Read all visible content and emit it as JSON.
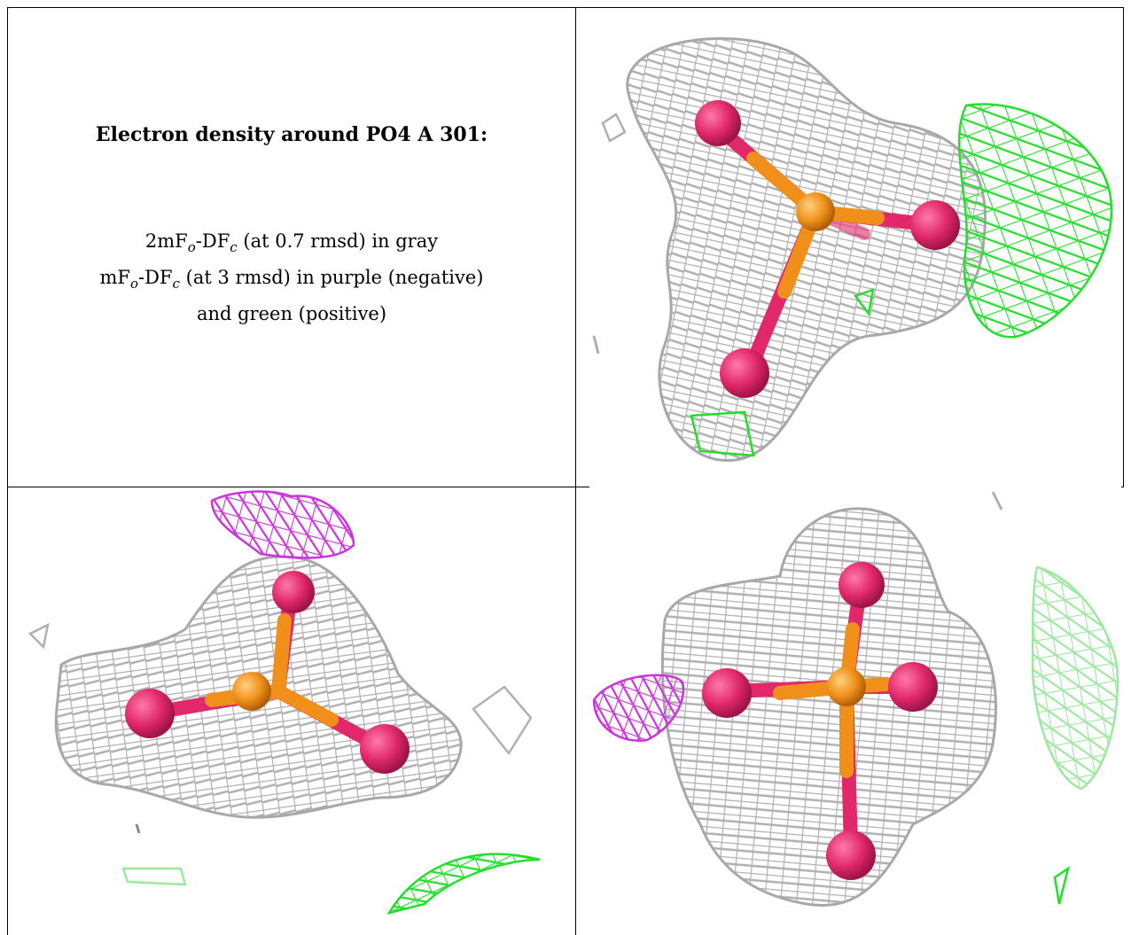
{
  "figure": {
    "title": "Electron density around PO4 A 301:",
    "legend": {
      "line1": {
        "prefix": "2mF",
        "sub1": "o",
        "mid": "-DF",
        "sub2": "c",
        "suffix": " (at 0.7 rmsd) in gray"
      },
      "line2": {
        "prefix": "mF",
        "sub1": "o",
        "mid": "-DF",
        "sub2": "c",
        "suffix": " (at 3 rmsd) in purple (negative)"
      },
      "line3": "and green (positive)"
    }
  },
  "panels": [
    {
      "id": "view-1",
      "description_icon": "molecule-mesh-icon"
    },
    {
      "id": "view-2",
      "description_icon": "molecule-mesh-icon"
    },
    {
      "id": "view-3",
      "description_icon": "molecule-mesh-icon"
    }
  ],
  "colors": {
    "mesh_gray": "#b8b8b8",
    "mesh_dark": "#8a8a8a",
    "green_positive": "#22e02a",
    "green_light": "#9de8a0",
    "purple_negative": "#cc33dd",
    "oxygen": "#e0286a",
    "phosphorus": "#f0901a"
  }
}
